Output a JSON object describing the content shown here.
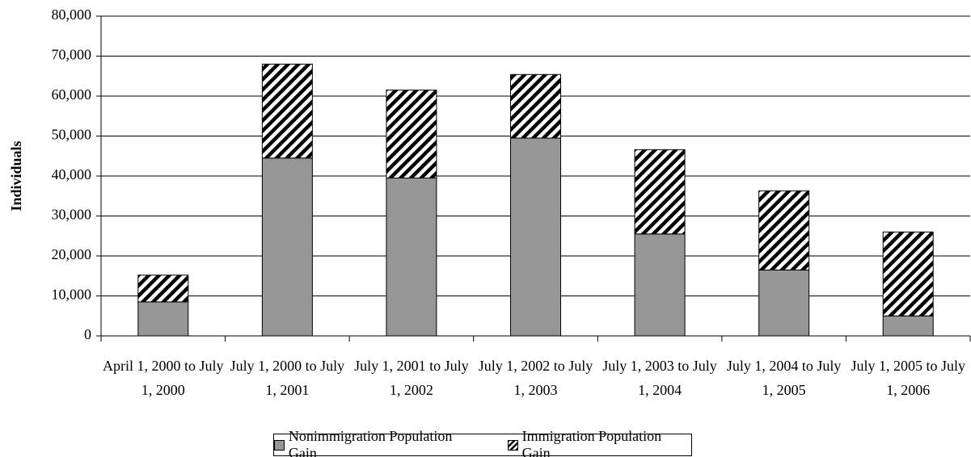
{
  "chart_data": {
    "type": "stacked_bar",
    "y_label": "Individuals",
    "categories": [
      "April 1, 2000 to July 1, 2000",
      "July 1, 2000 to July 1, 2001",
      "July 1, 2001 to July 1, 2002",
      "July 1, 2002 to July 1, 2003",
      "July 1, 2003 to July 1, 2004",
      "July 1, 2004 to July 1, 2005",
      "July 1, 2005 to July 1, 2006"
    ],
    "series": [
      {
        "name": "Nonimmigration Population Gain",
        "color": "#969696",
        "values": [
          8500,
          44500,
          39500,
          49500,
          25500,
          16500,
          5000
        ]
      },
      {
        "name": "Immigration Population Gain",
        "color": "#000000",
        "pattern": "hatch",
        "values": [
          6700,
          23500,
          22000,
          15900,
          21100,
          19800,
          21000
        ]
      }
    ],
    "ylim": [
      0,
      80000
    ],
    "yticks": [
      0,
      {
        "value": 10000,
        "label": "10,000"
      },
      {
        "value": 20000,
        "label": "20,000"
      },
      {
        "value": 30000,
        "label": "30,000"
      },
      {
        "value": 40000,
        "label": "40,000"
      },
      {
        "value": 50000,
        "label": "50,000"
      },
      {
        "value": 60000,
        "label": "60,000"
      },
      {
        "value": 70000,
        "label": "70,000"
      },
      {
        "value": 80000,
        "label": "80,000"
      }
    ],
    "grid": true,
    "legend": "bottom"
  }
}
